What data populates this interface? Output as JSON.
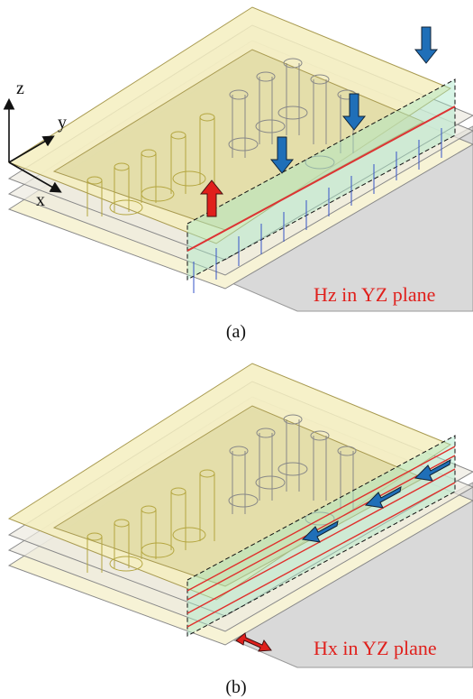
{
  "panels": [
    {
      "axes": {
        "z": "z",
        "y": "y",
        "x": "x"
      },
      "annotation": "Hz in YZ plane",
      "caption": "(a)"
    },
    {
      "annotation": "Hx in YZ plane",
      "caption": "(b)"
    }
  ]
}
